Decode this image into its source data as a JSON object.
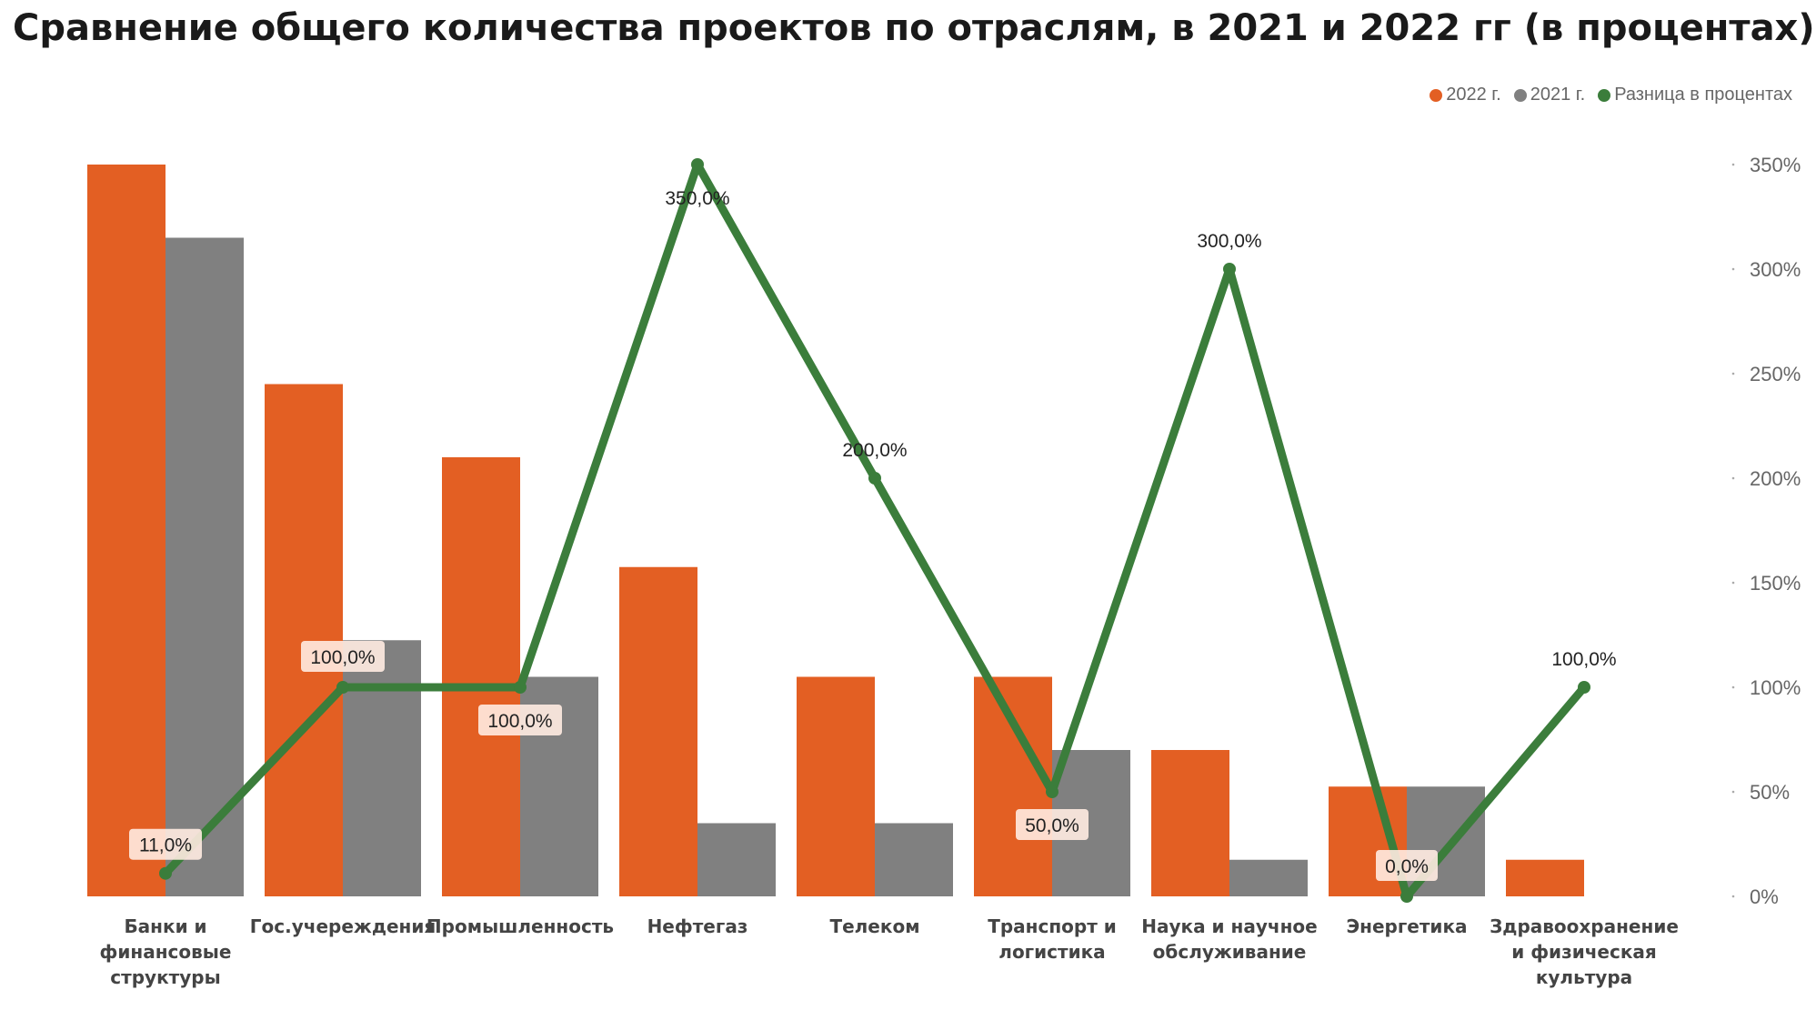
{
  "chart_data": {
    "type": "bar",
    "title": "Сравнение общего количества проектов по отраслям, в 2021 и 2022 гг (в процентах)",
    "categories": [
      [
        "Банки и",
        "финансовые",
        "структуры"
      ],
      [
        "Гос.учереждения"
      ],
      [
        "Промышленность"
      ],
      [
        "Нефтегаз"
      ],
      [
        "Телеком"
      ],
      [
        "Транспорт и",
        "логистика"
      ],
      [
        "Наука и научное",
        "обслуживание"
      ],
      [
        "Энергетика"
      ],
      [
        "Здравоохранение",
        "и физическая",
        "культура"
      ]
    ],
    "series": [
      {
        "name": "2022 г.",
        "kind": "bar",
        "color": "#E35F23",
        "values": [
          20,
          14,
          12,
          9,
          6,
          6,
          4,
          3,
          1
        ]
      },
      {
        "name": "2021 г.",
        "kind": "bar",
        "color": "#808080",
        "values": [
          18,
          7,
          6,
          2,
          2,
          4,
          1,
          3,
          0
        ]
      },
      {
        "name": "Разница в процентах",
        "kind": "line",
        "axis": "right",
        "color": "#3B7D3B",
        "values": [
          11,
          100,
          100,
          350,
          200,
          50,
          300,
          0,
          100
        ]
      }
    ],
    "data_labels": [
      "11,0%",
      "100,0%",
      "100,0%",
      "350,0%",
      "200,0%",
      "50,0%",
      "300,0%",
      "0,0%",
      "100,0%"
    ],
    "bar_axis_max": 20,
    "right_axis": {
      "ticks": [
        "0%",
        "50%",
        "100%",
        "150%",
        "200%",
        "250%",
        "300%",
        "350%"
      ],
      "tick_values": [
        0,
        50,
        100,
        150,
        200,
        250,
        300,
        350
      ],
      "ylim": [
        0,
        350
      ]
    },
    "legend_position": "top-right",
    "grid": false
  }
}
